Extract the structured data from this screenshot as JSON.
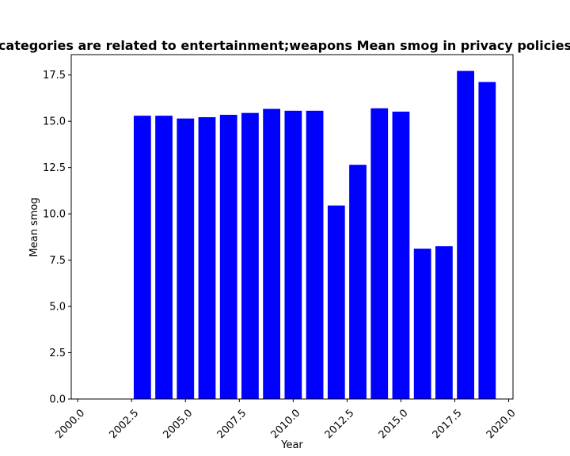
{
  "chart_data": {
    "type": "bar",
    "title": "categories are related to entertainment;weapons Mean smog in privacy policies",
    "xlabel": "Year",
    "ylabel": "Mean smog",
    "x": [
      2003,
      2004,
      2005,
      2006,
      2007,
      2008,
      2009,
      2010,
      2011,
      2012,
      2013,
      2014,
      2015,
      2016,
      2017,
      2018,
      2019
    ],
    "values": [
      15.3,
      15.3,
      15.15,
      15.22,
      15.35,
      15.45,
      15.67,
      15.57,
      15.57,
      10.45,
      12.65,
      15.7,
      15.52,
      8.12,
      8.25,
      17.72,
      17.12
    ],
    "xlim": [
      1999.7,
      2020.2
    ],
    "ylim": [
      0,
      18.6
    ],
    "xticks": [
      2000.0,
      2002.5,
      2005.0,
      2007.5,
      2010.0,
      2012.5,
      2015.0,
      2017.5,
      2020.0
    ],
    "xtick_labels": [
      "2000.0",
      "2002.5",
      "2005.0",
      "2007.5",
      "2010.0",
      "2012.5",
      "2015.0",
      "2017.5",
      "2020.0"
    ],
    "yticks": [
      0.0,
      2.5,
      5.0,
      7.5,
      10.0,
      12.5,
      15.0,
      17.5
    ],
    "ytick_labels": [
      "0.0",
      "2.5",
      "5.0",
      "7.5",
      "10.0",
      "12.5",
      "15.0",
      "17.5"
    ],
    "bar_color": "#0000ff",
    "grid": false,
    "legend": "none"
  }
}
